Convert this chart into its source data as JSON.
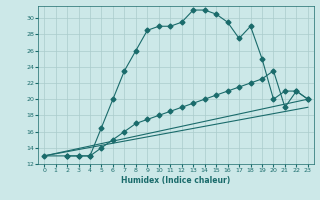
{
  "xlabel": "Humidex (Indice chaleur)",
  "bg_color": "#cce8e8",
  "grid_color": "#aacccc",
  "line_color": "#1a6b6b",
  "xlim": [
    -0.5,
    23.5
  ],
  "ylim": [
    12,
    31.5
  ],
  "xticks": [
    0,
    1,
    2,
    3,
    4,
    5,
    6,
    7,
    8,
    9,
    10,
    11,
    12,
    13,
    14,
    15,
    16,
    17,
    18,
    19,
    20,
    21,
    22,
    23
  ],
  "yticks": [
    12,
    14,
    16,
    18,
    20,
    22,
    24,
    26,
    28,
    30
  ],
  "curve1_x": [
    0,
    2,
    3,
    4,
    5,
    6,
    7,
    8,
    9,
    10,
    11,
    12,
    13,
    14,
    15,
    16,
    17,
    18,
    19,
    20,
    21,
    22,
    23
  ],
  "curve1_y": [
    13,
    13,
    13,
    13,
    16.5,
    20,
    23.5,
    26,
    28.5,
    29,
    29,
    29.5,
    31,
    31,
    30.5,
    29.5,
    27.5,
    29,
    25,
    20,
    21,
    21,
    20
  ],
  "curve2_x": [
    2,
    3,
    4,
    5,
    6,
    7,
    8,
    9,
    10,
    11,
    12,
    13,
    14,
    15,
    16,
    17,
    18,
    19,
    20,
    21,
    22,
    23
  ],
  "curve2_y": [
    13,
    13,
    13,
    14,
    15,
    16,
    17,
    17.5,
    18,
    18.5,
    19,
    19.5,
    20,
    20.5,
    21,
    21.5,
    22,
    22.5,
    23.5,
    19,
    21,
    20
  ],
  "curve3_x": [
    0,
    23
  ],
  "curve3_y": [
    13,
    20
  ],
  "curve4_x": [
    0,
    23
  ],
  "curve4_y": [
    13,
    19
  ]
}
